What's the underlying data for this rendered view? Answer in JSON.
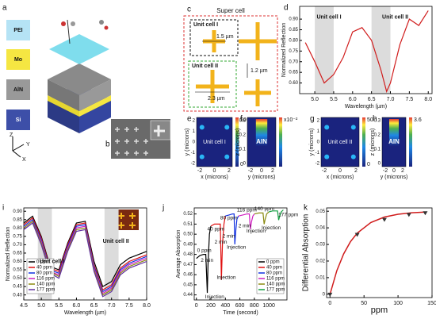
{
  "figure": {
    "panel_letters": [
      "a",
      "b",
      "c",
      "d",
      "e",
      "f",
      "g",
      "h",
      "i",
      "j",
      "k"
    ],
    "layers": [
      "PEI",
      "Mo",
      "AlN",
      "Si"
    ],
    "axes": [
      "Z",
      "Y",
      "X"
    ],
    "supercell": {
      "title": "Super cell",
      "unit1": "Unit cell I",
      "d1": "1.5 µm",
      "unit2": "Unit cell II",
      "d2": "2.3 µm",
      "gap": "1.2 µm"
    },
    "heatmaps": [
      {
        "label": "Unit cell I",
        "xlabel": "x (microns)",
        "ylabel": "y (microns)",
        "xticks": [
          "-2",
          "0",
          "2"
        ],
        "yticks": [
          "2",
          "1",
          "0",
          "-1",
          "-2"
        ],
        "cbar": [
          "50",
          "0"
        ]
      },
      {
        "label": "AlN",
        "xlabel": "y (microns)",
        "ylabel": "z (microns)",
        "xticks": [
          "-2",
          "0",
          "2"
        ],
        "yticks": [
          "0.3",
          "0.2",
          "0.1",
          "0"
        ],
        "cbar": [
          "x10⁻²"
        ]
      },
      {
        "label": "Unit cell II",
        "xlabel": "x (microns)",
        "ylabel": "y (microns)",
        "xticks": [
          "-2",
          "0",
          "2"
        ],
        "yticks": [
          "2",
          "1",
          "0",
          "-1",
          "-2"
        ],
        "cbar": [
          "50",
          "0"
        ]
      },
      {
        "label": "AlN",
        "xlabel": "y (microns)",
        "ylabel": "z (microns)",
        "xticks": [
          "-2",
          "0",
          "2"
        ],
        "yticks": [
          "0.3",
          "0.2",
          "0.1",
          "0"
        ],
        "cbar": [
          "3.6"
        ]
      }
    ]
  },
  "chart_data": [
    {
      "type": "line",
      "xlabel": "Wavelength (µm)",
      "ylabel": "Normalized Reflection",
      "x": [
        4.75,
        5.0,
        5.25,
        5.5,
        5.75,
        6.0,
        6.25,
        6.5,
        6.75,
        6.9,
        7.0,
        7.25,
        7.5,
        7.75,
        8.0
      ],
      "series": [
        {
          "color": "#d01c1c",
          "values": [
            0.79,
            0.7,
            0.6,
            0.64,
            0.72,
            0.84,
            0.86,
            0.8,
            0.66,
            0.56,
            0.6,
            0.78,
            0.9,
            0.87,
            0.94
          ]
        }
      ],
      "xlim": [
        4.6,
        8.1
      ],
      "ylim": [
        0.55,
        0.96
      ],
      "xticks": [
        {
          "value": 5,
          "label": "5.0"
        },
        5.5,
        {
          "value": 6,
          "label": "6.0"
        },
        6.5,
        {
          "value": 7,
          "label": "7.0"
        },
        7.5,
        {
          "value": 8,
          "label": "8.0"
        }
      ],
      "yticks": [
        {
          "value": 0.6,
          "label": "0.60"
        },
        0.65,
        {
          "value": 0.7,
          "label": "0.70"
        },
        0.75,
        {
          "value": 0.8,
          "label": "0.80"
        },
        0.85,
        {
          "value": 0.9,
          "label": "0.90"
        }
      ],
      "shaded": [
        [
          5.0,
          5.5
        ],
        [
          6.5,
          7.0
        ]
      ],
      "annotations": [
        "Unit cell I",
        "Unit cell II"
      ]
    },
    {
      "type": "line",
      "xlabel": "Wavelength (µm)",
      "ylabel": "Normalized Reflection",
      "x": [
        4.5,
        4.75,
        5.0,
        5.25,
        5.5,
        5.75,
        6.0,
        6.25,
        6.5,
        6.75,
        7.0,
        7.25,
        7.5,
        7.75,
        8.0
      ],
      "series": [
        {
          "name": "0 ppm",
          "color": "#000000",
          "values": [
            0.83,
            0.87,
            0.75,
            0.57,
            0.55,
            0.71,
            0.83,
            0.84,
            0.6,
            0.45,
            0.48,
            0.58,
            0.62,
            0.64,
            0.66
          ]
        },
        {
          "name": "40 ppm",
          "color": "#e01010",
          "values": [
            0.82,
            0.86,
            0.74,
            0.56,
            0.54,
            0.7,
            0.82,
            0.83,
            0.58,
            0.43,
            0.46,
            0.56,
            0.6,
            0.62,
            0.64
          ]
        },
        {
          "name": "80 ppm",
          "color": "#1030e0",
          "values": [
            0.81,
            0.85,
            0.73,
            0.55,
            0.53,
            0.69,
            0.81,
            0.82,
            0.57,
            0.42,
            0.45,
            0.55,
            0.59,
            0.61,
            0.63
          ]
        },
        {
          "name": "116 ppm",
          "color": "#d020c0",
          "values": [
            0.8,
            0.84,
            0.72,
            0.54,
            0.52,
            0.68,
            0.8,
            0.81,
            0.56,
            0.41,
            0.44,
            0.54,
            0.58,
            0.6,
            0.62
          ]
        },
        {
          "name": "140 ppm",
          "color": "#8a8a10",
          "values": [
            0.8,
            0.84,
            0.71,
            0.54,
            0.51,
            0.67,
            0.79,
            0.8,
            0.55,
            0.4,
            0.43,
            0.53,
            0.57,
            0.59,
            0.61
          ]
        },
        {
          "name": "177 ppm",
          "color": "#6030a0",
          "values": [
            0.79,
            0.83,
            0.7,
            0.53,
            0.5,
            0.66,
            0.78,
            0.79,
            0.54,
            0.39,
            0.42,
            0.52,
            0.56,
            0.58,
            0.6
          ]
        }
      ],
      "xlim": [
        4.5,
        8.0
      ],
      "ylim": [
        0.37,
        0.92
      ],
      "xticks": [
        4.5,
        {
          "value": 5,
          "label": "5.0"
        },
        5.5,
        {
          "value": 6,
          "label": "6.0"
        },
        6.5,
        {
          "value": 7,
          "label": "7.0"
        },
        7.5,
        {
          "value": 8,
          "label": "8.0"
        }
      ],
      "yticks": [
        {
          "value": 0.4,
          "label": "0.40"
        },
        0.45,
        {
          "value": 0.5,
          "label": "0.50"
        },
        0.55,
        {
          "value": 0.6,
          "label": "0.60"
        },
        0.65,
        {
          "value": 0.7,
          "label": "0.70"
        },
        0.75,
        {
          "value": 0.8,
          "label": "0.80"
        },
        0.85,
        {
          "value": 0.9,
          "label": "0.90"
        }
      ],
      "shaded": [
        [
          4.9,
          5.3
        ],
        [
          6.8,
          7.2
        ]
      ],
      "legend": "lower left",
      "annotations": [
        "Unit cell I",
        "Unit cell II"
      ]
    },
    {
      "type": "line",
      "xlabel": "Time (second)",
      "ylabel": "Average Absorption",
      "series": [
        {
          "name": "0 ppm",
          "color": "#000000",
          "x": [
            0,
            50,
            100,
            130,
            150,
            160,
            180,
            200
          ],
          "values": [
            0.476,
            0.479,
            0.48,
            0.48,
            0.442,
            0.47,
            0.5,
            0.508
          ]
        },
        {
          "name": "40 ppm",
          "color": "#e01010",
          "x": [
            200,
            250,
            300,
            330,
            345,
            360,
            380,
            400
          ],
          "values": [
            0.508,
            0.51,
            0.51,
            0.51,
            0.455,
            0.49,
            0.51,
            0.518
          ]
        },
        {
          "name": "80 ppm",
          "color": "#1030e0",
          "x": [
            400,
            450,
            500,
            520,
            530,
            545,
            560,
            580
          ],
          "values": [
            0.518,
            0.519,
            0.52,
            0.52,
            0.49,
            0.505,
            0.515,
            0.518
          ]
        },
        {
          "name": "116 ppm",
          "color": "#d020c0",
          "x": [
            580,
            640,
            700,
            730,
            745,
            760,
            780,
            800
          ],
          "values": [
            0.518,
            0.519,
            0.52,
            0.52,
            0.505,
            0.512,
            0.518,
            0.52
          ]
        },
        {
          "name": "140 ppm",
          "color": "#8a8a10",
          "x": [
            800,
            860,
            900,
            920,
            935,
            950,
            970,
            1000
          ],
          "values": [
            0.52,
            0.521,
            0.521,
            0.521,
            0.51,
            0.515,
            0.52,
            0.522
          ]
        },
        {
          "name": "177 ppm",
          "color": "#10a040",
          "x": [
            1000,
            1050,
            1100,
            1120,
            1135,
            1150,
            1170,
            1200
          ],
          "values": [
            0.522,
            0.523,
            0.523,
            0.523,
            0.514,
            0.518,
            0.522,
            0.524
          ]
        }
      ],
      "xlim": [
        -30,
        1250
      ],
      "ylim": [
        0.435,
        0.526
      ],
      "xticks": [
        0,
        200,
        400,
        600,
        800,
        1000
      ],
      "yticks": [
        0.44,
        0.45,
        0.46,
        0.47,
        0.48,
        0.49,
        {
          "value": 0.5,
          "label": "0.50"
        },
        0.51,
        0.52
      ],
      "legend": "lower right",
      "annotations": [
        "0 ppm",
        "2 min",
        "Injection",
        "40 ppm",
        "2 min",
        "Injection",
        "80 ppm",
        "2 min",
        "Injection",
        "116 ppm",
        "2 min",
        "Injection",
        "140 ppm",
        "Injection",
        "177 ppm"
      ]
    },
    {
      "type": "scatter",
      "xlabel": "ppm",
      "ylabel": "Differential Absorption",
      "color": "#333333",
      "fit_color": "#d01c1c",
      "x": [
        0,
        40,
        80,
        116,
        140
      ],
      "values": [
        0,
        0.036,
        0.045,
        0.048,
        0.049
      ],
      "fit_x": [
        0,
        10,
        20,
        30,
        40,
        60,
        80,
        100,
        120,
        140
      ],
      "fit_values": [
        0,
        0.0142,
        0.0243,
        0.0316,
        0.0368,
        0.0432,
        0.0465,
        0.0482,
        0.0491,
        0.0495
      ],
      "xlim": [
        -5,
        150
      ],
      "ylim": [
        -0.002,
        0.052
      ],
      "xticks": [
        0,
        50,
        100,
        150
      ],
      "yticks": [
        0,
        0.01,
        0.02,
        0.03,
        0.04,
        0.05
      ]
    }
  ]
}
